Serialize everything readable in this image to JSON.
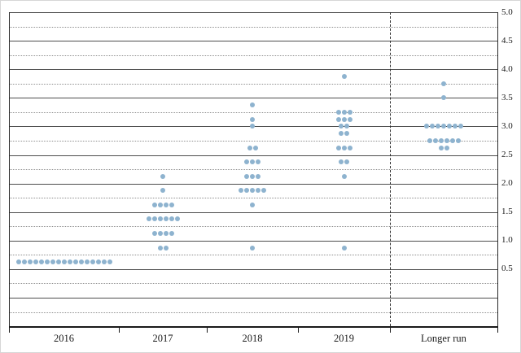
{
  "chart_data": {
    "type": "scatter",
    "subtype": "fomc-dot-plot",
    "title": "",
    "xlabel": "",
    "ylabel": "",
    "ylim": [
      -0.5,
      5.0
    ],
    "grid": "horizontal solid lines every 0.5, dotted lines every 0.25",
    "legend": "none",
    "dot_color": "#8EB3CF",
    "y_tick_labels": [
      "5.0",
      "4.5",
      "4.0",
      "3.5",
      "3.0",
      "2.5",
      "2.0",
      "1.5",
      "1.0",
      "0.5"
    ],
    "y_tick_values": [
      5.0,
      4.5,
      4.0,
      3.5,
      3.0,
      2.5,
      2.0,
      1.5,
      1.0,
      0.5
    ],
    "categories": [
      "2016",
      "2017",
      "2018",
      "2019",
      "Longer run"
    ],
    "divider_before_category": "Longer run",
    "series": [
      {
        "category": "2016",
        "dots": [
          {
            "value": 0.625,
            "count": 17
          }
        ]
      },
      {
        "category": "2017",
        "dots": [
          {
            "value": 2.125,
            "count": 1
          },
          {
            "value": 1.875,
            "count": 1
          },
          {
            "value": 1.625,
            "count": 4
          },
          {
            "value": 1.375,
            "count": 6
          },
          {
            "value": 1.125,
            "count": 4
          },
          {
            "value": 0.875,
            "count": 2
          }
        ]
      },
      {
        "category": "2018",
        "dots": [
          {
            "value": 3.375,
            "count": 1
          },
          {
            "value": 3.125,
            "count": 1
          },
          {
            "value": 3.0,
            "count": 1
          },
          {
            "value": 2.625,
            "count": 2
          },
          {
            "value": 2.375,
            "count": 3
          },
          {
            "value": 2.125,
            "count": 3
          },
          {
            "value": 1.875,
            "count": 5
          },
          {
            "value": 1.625,
            "count": 1
          },
          {
            "value": 0.875,
            "count": 1
          }
        ]
      },
      {
        "category": "2019",
        "dots": [
          {
            "value": 3.875,
            "count": 1
          },
          {
            "value": 3.25,
            "count": 3
          },
          {
            "value": 3.125,
            "count": 3
          },
          {
            "value": 3.0,
            "count": 2
          },
          {
            "value": 2.875,
            "count": 2
          },
          {
            "value": 2.625,
            "count": 3
          },
          {
            "value": 2.375,
            "count": 2
          },
          {
            "value": 2.125,
            "count": 1
          },
          {
            "value": 0.875,
            "count": 1
          }
        ]
      },
      {
        "category": "Longer run",
        "dots": [
          {
            "value": 3.75,
            "count": 1
          },
          {
            "value": 3.5,
            "count": 1
          },
          {
            "value": 3.0,
            "count": 7
          },
          {
            "value": 2.75,
            "count": 6
          },
          {
            "value": 2.625,
            "count": 2
          }
        ]
      }
    ]
  }
}
